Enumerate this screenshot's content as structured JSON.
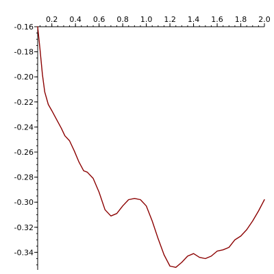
{
  "chart_data": {
    "type": "line",
    "title": "",
    "xlabel": "",
    "ylabel": "",
    "xlim": [
      0.08,
      2.0
    ],
    "ylim": [
      -0.354,
      -0.16
    ],
    "x_ticks": [
      0.2,
      0.4,
      0.6,
      0.8,
      1.0,
      1.2,
      1.4,
      1.6,
      1.8,
      2.0
    ],
    "x_tick_labels": [
      "0.2",
      "0.4",
      "0.6",
      "0.8",
      "1.0",
      "1.2",
      "1.4",
      "1.6",
      "1.8",
      "2.0"
    ],
    "y_ticks": [
      -0.16,
      -0.18,
      -0.2,
      -0.22,
      -0.24,
      -0.26,
      -0.28,
      -0.3,
      -0.32,
      -0.34
    ],
    "y_tick_labels": [
      "-0.16",
      "-0.18",
      "-0.20",
      "-0.22",
      "-0.24",
      "-0.26",
      "-0.28",
      "-0.30",
      "-0.32",
      "-0.34"
    ],
    "grid": false,
    "line_color": "#8b0000",
    "series": [
      {
        "x": [
          0.08,
          0.1,
          0.12,
          0.14,
          0.17,
          0.2,
          0.24,
          0.28,
          0.31,
          0.35,
          0.39,
          0.43,
          0.47,
          0.5,
          0.55,
          0.6,
          0.65,
          0.7,
          0.75,
          0.8,
          0.85,
          0.9,
          0.95,
          1.0,
          1.05,
          1.1,
          1.15,
          1.2,
          1.25,
          1.3,
          1.35,
          1.4,
          1.45,
          1.5,
          1.55,
          1.6,
          1.65,
          1.7,
          1.75,
          1.8,
          1.85,
          1.9,
          1.95,
          2.0
        ],
        "y": [
          -0.16,
          -0.178,
          -0.198,
          -0.212,
          -0.222,
          -0.227,
          -0.234,
          -0.241,
          -0.247,
          -0.251,
          -0.259,
          -0.268,
          -0.275,
          -0.276,
          -0.281,
          -0.292,
          -0.306,
          -0.311,
          -0.309,
          -0.303,
          -0.298,
          -0.297,
          -0.298,
          -0.303,
          -0.315,
          -0.329,
          -0.342,
          -0.351,
          -0.352,
          -0.348,
          -0.343,
          -0.341,
          -0.344,
          -0.345,
          -0.343,
          -0.339,
          -0.338,
          -0.336,
          -0.33,
          -0.327,
          -0.322,
          -0.315,
          -0.307,
          -0.298
        ]
      }
    ]
  }
}
